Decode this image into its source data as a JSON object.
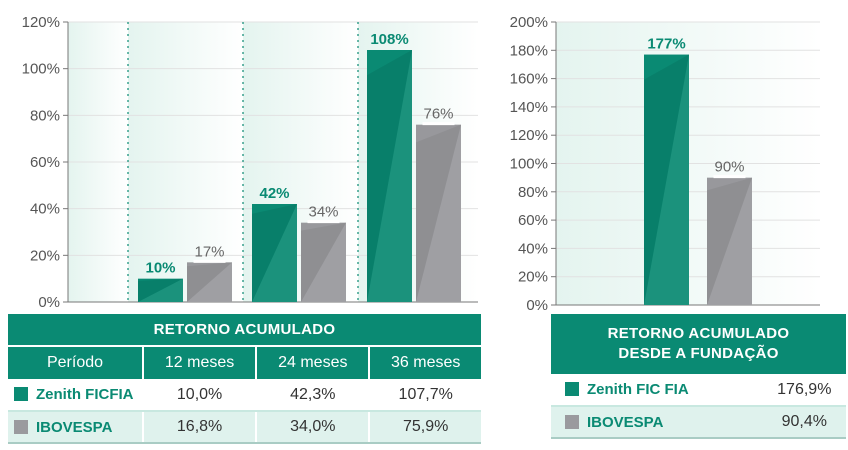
{
  "colors": {
    "fund": "#0a8a73",
    "index": "#98989c",
    "accent_dark": "#076b59",
    "grid": "#e6e6e6"
  },
  "chart_data": [
    {
      "type": "bar",
      "categories": [
        "12 meses",
        "24 meses",
        "36 meses"
      ],
      "series": [
        {
          "name": "Zenith FICFIA",
          "values": [
            10,
            42,
            108
          ],
          "labels": [
            "10%",
            "42%",
            "108%"
          ]
        },
        {
          "name": "IBOVESPA",
          "values": [
            17,
            34,
            76
          ],
          "labels": [
            "17%",
            "34%",
            "76%"
          ]
        }
      ],
      "ylim": [
        0,
        120
      ],
      "yticks": [
        "0%",
        "20%",
        "40%",
        "60%",
        "80%",
        "100%",
        "120%"
      ],
      "xlabel": "",
      "ylabel": "",
      "title": ""
    },
    {
      "type": "bar",
      "categories": [
        "Desde a fundação"
      ],
      "series": [
        {
          "name": "Zenith FIC FIA",
          "values": [
            177
          ],
          "labels": [
            "177%"
          ]
        },
        {
          "name": "IBOVESPA",
          "values": [
            90
          ],
          "labels": [
            "90%"
          ]
        }
      ],
      "ylim": [
        0,
        200
      ],
      "yticks": [
        "0%",
        "20%",
        "40%",
        "60%",
        "80%",
        "100%",
        "120%",
        "140%",
        "160%",
        "180%",
        "200%"
      ],
      "xlabel": "",
      "ylabel": "",
      "title": ""
    }
  ],
  "table_left": {
    "title": "RETORNO ACUMULADO",
    "headers": [
      "Período",
      "12 meses",
      "24 meses",
      "36 meses"
    ],
    "rows": [
      {
        "label": "Zenith FICFIA",
        "values": [
          "10,0%",
          "42,3%",
          "107,7%"
        ]
      },
      {
        "label": "IBOVESPA",
        "values": [
          "16,8%",
          "34,0%",
          "75,9%"
        ]
      }
    ]
  },
  "table_right": {
    "title_line1": "RETORNO ACUMULADO",
    "title_line2": "DESDE A FUNDAÇÃO",
    "rows": [
      {
        "label": "Zenith FIC FIA",
        "value": "176,9%"
      },
      {
        "label": "IBOVESPA",
        "value": "90,4%"
      }
    ]
  }
}
